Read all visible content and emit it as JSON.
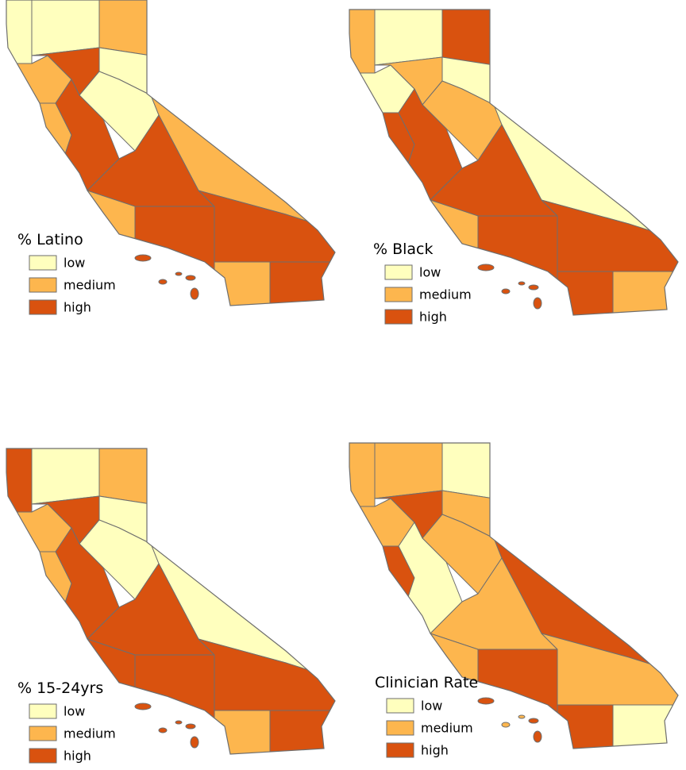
{
  "panels": [
    {
      "title": "% Latino",
      "legend": [
        {
          "label": "low",
          "color": "#ffffbe"
        },
        {
          "label": "medium",
          "color": "#fdb64e"
        },
        {
          "label": "high",
          "color": "#d9520f"
        }
      ]
    },
    {
      "title": "% Black",
      "legend": [
        {
          "label": "low",
          "color": "#ffffbe"
        },
        {
          "label": "medium",
          "color": "#fdb64e"
        },
        {
          "label": "high",
          "color": "#d9520f"
        }
      ]
    },
    {
      "title": "% 15-24yrs",
      "legend": [
        {
          "label": "low",
          "color": "#ffffbe"
        },
        {
          "label": "medium",
          "color": "#fdb64e"
        },
        {
          "label": "high",
          "color": "#d9520f"
        }
      ]
    },
    {
      "title": "Clinician Rate",
      "legend": [
        {
          "label": "low",
          "color": "#ffffbe"
        },
        {
          "label": "medium",
          "color": "#fdb64e"
        },
        {
          "label": "high",
          "color": "#d9520f"
        }
      ]
    }
  ]
}
